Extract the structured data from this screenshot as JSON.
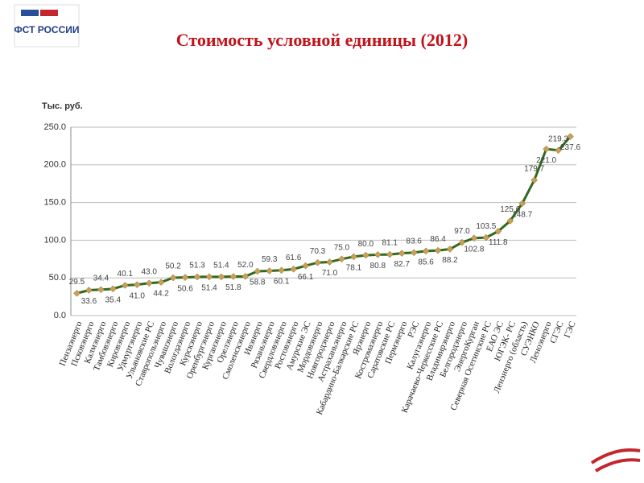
{
  "logo": "ФСТ РОССИИ",
  "chart_data": {
    "type": "line",
    "title": "Стоимость условной единицы (2012)",
    "y_label": "Тыс. руб.",
    "categories": [
      "Пензаэнерго",
      "Псковэнерго",
      "Калмэнерго",
      "Тамбовэнерго",
      "Кировэнерго",
      "Удмуртэнерго",
      "Ульяновские РС",
      "Ставропольэнерго",
      "Чувашэнерго",
      "Вологдаэнерго",
      "Курскэнерго",
      "Оренбургэнерго",
      "Курганэнерго",
      "Орелэнерго",
      "Смоленскэнерго",
      "Ивэнерго",
      "Рязаньэнерго",
      "Свердловэнерго",
      "Ростовэнерго",
      "Амурские ЭС",
      "Мордовэнерго",
      "Новгородэнерго",
      "Астраханьэнерго",
      "Кабардино-Балкарские РС",
      "Ярэнерго",
      "Костромаэнерго",
      "Саратовские РС",
      "Пермэнерго",
      "РЭС",
      "Калугаэнерго",
      "Карачаево-Черкесские РС",
      "Владимирэнерго",
      "Белгородэнерго",
      "ЭнергоКурган",
      "Северная Осетинские РС",
      "ЕАО ЭС",
      "ЮГЭК- РС",
      "Ленэнерго (область)",
      "СУЭНКО",
      "Леноэнерго",
      "СГЭС",
      "ГЭС"
    ],
    "series": [
      {
        "name": "Стоимость",
        "color": "#2f6a1e",
        "marker_color": "#c9a055",
        "values": [
          29.5,
          33.6,
          34.4,
          35.4,
          40.1,
          41.0,
          43.0,
          44.2,
          50.2,
          50.6,
          51.3,
          51.4,
          51.4,
          51.8,
          52.0,
          58.8,
          59.3,
          60.1,
          61.6,
          66.1,
          70.3,
          71.0,
          75.0,
          78.1,
          80.0,
          80.8,
          81.1,
          82.7,
          83.6,
          85.6,
          86.4,
          88.2,
          97.0,
          102.8,
          103.5,
          111.8,
          125.6,
          148.7,
          179.7,
          221.0,
          219.3,
          237.6
        ],
        "value_labels": [
          "29.5",
          "33.6",
          "34.4",
          "35.4",
          "40.1",
          "41.0",
          "43.0",
          "44.2",
          "50.2",
          "50.6",
          "51.3",
          "51.4",
          "51.4",
          "51.8",
          "52.0",
          "58.8",
          "59.3",
          "60.1",
          "61.6",
          "66.1",
          "70.3",
          "71.0",
          "75.0",
          "78.1",
          "80.0",
          "80.8",
          "81.1",
          "82.7",
          "83.6",
          "85.6",
          "86.4",
          "88.2",
          "97.0",
          "102.8",
          "103.5",
          "111.8",
          "125.6",
          "148.7",
          "179.7",
          "221.0",
          "219.3",
          "237.6"
        ]
      }
    ],
    "ylim": [
      0,
      250
    ],
    "yticks": [
      {
        "value": 0,
        "label": "0.0"
      },
      {
        "value": 50,
        "label": "50.0"
      },
      {
        "value": 100,
        "label": "100.0"
      },
      {
        "value": 150,
        "label": "150.0"
      },
      {
        "value": 200,
        "label": "200.0"
      },
      {
        "value": 250,
        "label": "250.0"
      }
    ],
    "grid": true
  }
}
